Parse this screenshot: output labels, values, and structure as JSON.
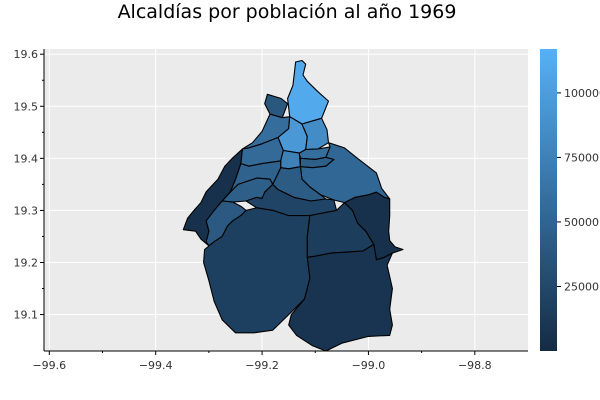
{
  "title": "Alcaldías por población al año 1969",
  "chart_data": {
    "type": "choropleth",
    "title": "Alcaldías por población al año 1969",
    "xlim": [
      -99.61,
      -98.7
    ],
    "ylim": [
      19.03,
      19.61
    ],
    "x_ticks": [
      "−99.6",
      "−99.4",
      "−99.2",
      "−99.0",
      "−98.8"
    ],
    "x_tick_values": [
      -99.6,
      -99.4,
      -99.2,
      -99.0,
      -98.8
    ],
    "y_ticks": [
      "19.1",
      "19.2",
      "19.3",
      "19.4",
      "19.5",
      "19.6"
    ],
    "y_tick_values": [
      19.1,
      19.2,
      19.3,
      19.4,
      19.5,
      19.6
    ],
    "grid": true,
    "colorbar": {
      "min": 0,
      "max": 117000,
      "ticks": [
        "25000",
        "50000",
        "75000",
        "100000"
      ],
      "tick_values": [
        25000,
        50000,
        75000,
        100000
      ],
      "color_low": "#142b44",
      "color_high": "#56b1f7"
    },
    "regions": [
      {
        "value": 110000,
        "coords": [
          [
            -99.137,
            19.585
          ],
          [
            -99.125,
            19.588
          ],
          [
            -99.118,
            19.581
          ],
          [
            -99.123,
            19.56
          ],
          [
            -99.115,
            19.548
          ],
          [
            -99.095,
            19.528
          ],
          [
            -99.075,
            19.51
          ],
          [
            -99.088,
            19.477
          ],
          [
            -99.125,
            19.466
          ],
          [
            -99.148,
            19.48
          ],
          [
            -99.152,
            19.515
          ],
          [
            -99.142,
            19.54
          ],
          [
            -99.139,
            19.566
          ]
        ]
      },
      {
        "value": 38000,
        "coords": [
          [
            -99.19,
            19.523
          ],
          [
            -99.164,
            19.515
          ],
          [
            -99.152,
            19.505
          ],
          [
            -99.162,
            19.478
          ],
          [
            -99.185,
            19.485
          ],
          [
            -99.195,
            19.505
          ]
        ]
      },
      {
        "value": 58000,
        "coords": [
          [
            -99.185,
            19.485
          ],
          [
            -99.162,
            19.478
          ],
          [
            -99.148,
            19.48
          ],
          [
            -99.15,
            19.457
          ],
          [
            -99.17,
            19.44
          ],
          [
            -99.2,
            19.428
          ],
          [
            -99.225,
            19.42
          ],
          [
            -99.237,
            19.418
          ],
          [
            -99.218,
            19.43
          ],
          [
            -99.2,
            19.452
          ]
        ]
      },
      {
        "value": 95000,
        "coords": [
          [
            -99.148,
            19.48
          ],
          [
            -99.125,
            19.466
          ],
          [
            -99.115,
            19.442
          ],
          [
            -99.118,
            19.417
          ],
          [
            -99.13,
            19.41
          ],
          [
            -99.16,
            19.415
          ],
          [
            -99.17,
            19.44
          ],
          [
            -99.15,
            19.457
          ]
        ]
      },
      {
        "value": 85000,
        "coords": [
          [
            -99.125,
            19.466
          ],
          [
            -99.088,
            19.477
          ],
          [
            -99.078,
            19.455
          ],
          [
            -99.075,
            19.43
          ],
          [
            -99.095,
            19.418
          ],
          [
            -99.118,
            19.417
          ],
          [
            -99.115,
            19.442
          ]
        ]
      },
      {
        "value": 55000,
        "coords": [
          [
            -99.237,
            19.418
          ],
          [
            -99.225,
            19.42
          ],
          [
            -99.2,
            19.428
          ],
          [
            -99.17,
            19.44
          ],
          [
            -99.16,
            19.415
          ],
          [
            -99.165,
            19.395
          ],
          [
            -99.2,
            19.39
          ],
          [
            -99.225,
            19.385
          ],
          [
            -99.24,
            19.39
          ]
        ]
      },
      {
        "value": 75000,
        "coords": [
          [
            -99.16,
            19.415
          ],
          [
            -99.13,
            19.41
          ],
          [
            -99.128,
            19.384
          ],
          [
            -99.15,
            19.38
          ],
          [
            -99.165,
            19.382
          ],
          [
            -99.165,
            19.395
          ]
        ]
      },
      {
        "value": 58000,
        "coords": [
          [
            -99.118,
            19.417
          ],
          [
            -99.095,
            19.418
          ],
          [
            -99.072,
            19.422
          ],
          [
            -99.08,
            19.402
          ],
          [
            -99.1,
            19.398
          ],
          [
            -99.128,
            19.4
          ],
          [
            -99.13,
            19.41
          ]
        ]
      },
      {
        "value": 45000,
        "coords": [
          [
            -99.128,
            19.4
          ],
          [
            -99.1,
            19.398
          ],
          [
            -99.08,
            19.402
          ],
          [
            -99.065,
            19.398
          ],
          [
            -99.08,
            19.385
          ],
          [
            -99.105,
            19.382
          ],
          [
            -99.128,
            19.384
          ]
        ]
      },
      {
        "value": 52000,
        "coords": [
          [
            -99.075,
            19.43
          ],
          [
            -99.072,
            19.422
          ],
          [
            -99.08,
            19.402
          ],
          [
            -99.065,
            19.398
          ],
          [
            -99.08,
            19.385
          ],
          [
            -99.105,
            19.382
          ],
          [
            -99.128,
            19.384
          ],
          [
            -99.125,
            19.36
          ],
          [
            -99.11,
            19.345
          ],
          [
            -99.09,
            19.33
          ],
          [
            -99.065,
            19.32
          ],
          [
            -99.045,
            19.315
          ],
          [
            -99.025,
            19.325
          ],
          [
            -99.0,
            19.33
          ],
          [
            -98.985,
            19.335
          ],
          [
            -98.97,
            19.325
          ],
          [
            -98.96,
            19.322
          ],
          [
            -98.975,
            19.342
          ],
          [
            -98.985,
            19.372
          ],
          [
            -99.018,
            19.398
          ],
          [
            -99.045,
            19.42
          ]
        ]
      },
      {
        "value": 42000,
        "coords": [
          [
            -99.165,
            19.382
          ],
          [
            -99.15,
            19.38
          ],
          [
            -99.128,
            19.384
          ],
          [
            -99.125,
            19.36
          ],
          [
            -99.11,
            19.345
          ],
          [
            -99.09,
            19.33
          ],
          [
            -99.08,
            19.322
          ],
          [
            -99.108,
            19.318
          ],
          [
            -99.14,
            19.325
          ],
          [
            -99.17,
            19.34
          ],
          [
            -99.18,
            19.35
          ]
        ]
      },
      {
        "value": 48000,
        "coords": [
          [
            -99.24,
            19.39
          ],
          [
            -99.225,
            19.385
          ],
          [
            -99.2,
            19.39
          ],
          [
            -99.165,
            19.395
          ],
          [
            -99.165,
            19.382
          ],
          [
            -99.18,
            19.35
          ],
          [
            -99.185,
            19.36
          ],
          [
            -99.21,
            19.362
          ],
          [
            -99.245,
            19.35
          ],
          [
            -99.255,
            19.34
          ],
          [
            -99.26,
            19.335
          ],
          [
            -99.25,
            19.36
          ]
        ]
      },
      {
        "value": 5000,
        "coords": [
          [
            -99.237,
            19.418
          ],
          [
            -99.24,
            19.39
          ],
          [
            -99.25,
            19.36
          ],
          [
            -99.26,
            19.335
          ],
          [
            -99.275,
            19.318
          ],
          [
            -99.29,
            19.3
          ],
          [
            -99.305,
            19.28
          ],
          [
            -99.3,
            19.26
          ],
          [
            -99.305,
            19.24
          ],
          [
            -99.3,
            19.232
          ],
          [
            -99.315,
            19.245
          ],
          [
            -99.325,
            19.26
          ],
          [
            -99.348,
            19.263
          ],
          [
            -99.34,
            19.285
          ],
          [
            -99.328,
            19.3
          ],
          [
            -99.315,
            19.315
          ],
          [
            -99.305,
            19.336
          ],
          [
            -99.283,
            19.36
          ],
          [
            -99.27,
            19.385
          ],
          [
            -99.256,
            19.4
          ]
        ]
      },
      {
        "value": 45000,
        "coords": [
          [
            -99.26,
            19.335
          ],
          [
            -99.255,
            19.34
          ],
          [
            -99.245,
            19.35
          ],
          [
            -99.21,
            19.362
          ],
          [
            -99.185,
            19.36
          ],
          [
            -99.18,
            19.35
          ],
          [
            -99.195,
            19.335
          ],
          [
            -99.2,
            19.323
          ],
          [
            -99.21,
            19.325
          ],
          [
            -99.23,
            19.318
          ],
          [
            -99.255,
            19.316
          ],
          [
            -99.275,
            19.318
          ]
        ]
      },
      {
        "value": 40000,
        "coords": [
          [
            -99.29,
            19.3
          ],
          [
            -99.275,
            19.318
          ],
          [
            -99.255,
            19.316
          ],
          [
            -99.24,
            19.308
          ],
          [
            -99.23,
            19.3
          ],
          [
            -99.24,
            19.29
          ],
          [
            -99.255,
            19.28
          ],
          [
            -99.265,
            19.27
          ],
          [
            -99.275,
            19.25
          ],
          [
            -99.29,
            19.24
          ],
          [
            -99.3,
            19.232
          ],
          [
            -99.305,
            19.24
          ],
          [
            -99.3,
            19.26
          ],
          [
            -99.305,
            19.28
          ]
        ]
      },
      {
        "value": 22000,
        "coords": [
          [
            -99.23,
            19.318
          ],
          [
            -99.21,
            19.325
          ],
          [
            -99.2,
            19.323
          ],
          [
            -99.195,
            19.335
          ],
          [
            -99.18,
            19.35
          ],
          [
            -99.17,
            19.34
          ],
          [
            -99.14,
            19.325
          ],
          [
            -99.108,
            19.318
          ],
          [
            -99.08,
            19.322
          ],
          [
            -99.065,
            19.32
          ],
          [
            -99.06,
            19.3
          ],
          [
            -99.085,
            19.295
          ],
          [
            -99.11,
            19.29
          ],
          [
            -99.15,
            19.29
          ],
          [
            -99.18,
            19.3
          ],
          [
            -99.21,
            19.305
          ]
        ]
      },
      {
        "value": 18000,
        "coords": [
          [
            -99.29,
            19.24
          ],
          [
            -99.275,
            19.25
          ],
          [
            -99.265,
            19.27
          ],
          [
            -99.255,
            19.28
          ],
          [
            -99.24,
            19.29
          ],
          [
            -99.23,
            19.3
          ],
          [
            -99.21,
            19.305
          ],
          [
            -99.18,
            19.3
          ],
          [
            -99.15,
            19.29
          ],
          [
            -99.11,
            19.29
          ],
          [
            -99.115,
            19.25
          ],
          [
            -99.115,
            19.21
          ],
          [
            -99.11,
            19.17
          ],
          [
            -99.12,
            19.13
          ],
          [
            -99.15,
            19.1
          ],
          [
            -99.18,
            19.07
          ],
          [
            -99.215,
            19.065
          ],
          [
            -99.25,
            19.065
          ],
          [
            -99.275,
            19.09
          ],
          [
            -99.29,
            19.125
          ],
          [
            -99.3,
            19.165
          ],
          [
            -99.31,
            19.2
          ],
          [
            -99.308,
            19.225
          ]
        ]
      },
      {
        "value": 16000,
        "coords": [
          [
            -99.11,
            19.29
          ],
          [
            -99.085,
            19.295
          ],
          [
            -99.06,
            19.3
          ],
          [
            -99.045,
            19.315
          ],
          [
            -99.03,
            19.3
          ],
          [
            -99.02,
            19.275
          ],
          [
            -99.005,
            19.26
          ],
          [
            -98.99,
            19.235
          ],
          [
            -99.01,
            19.222
          ],
          [
            -99.04,
            19.22
          ],
          [
            -99.07,
            19.218
          ],
          [
            -99.1,
            19.212
          ],
          [
            -99.115,
            19.21
          ],
          [
            -99.115,
            19.25
          ]
        ]
      },
      {
        "value": 5000,
        "coords": [
          [
            -99.045,
            19.315
          ],
          [
            -99.025,
            19.325
          ],
          [
            -99.0,
            19.33
          ],
          [
            -98.985,
            19.335
          ],
          [
            -98.97,
            19.325
          ],
          [
            -98.96,
            19.322
          ],
          [
            -98.96,
            19.29
          ],
          [
            -98.962,
            19.26
          ],
          [
            -98.96,
            19.242
          ],
          [
            -98.95,
            19.23
          ],
          [
            -98.935,
            19.225
          ],
          [
            -98.955,
            19.218
          ],
          [
            -98.97,
            19.21
          ],
          [
            -98.985,
            19.205
          ],
          [
            -98.99,
            19.235
          ],
          [
            -99.005,
            19.26
          ],
          [
            -99.02,
            19.275
          ],
          [
            -99.03,
            19.3
          ]
        ]
      },
      {
        "value": 8000,
        "coords": [
          [
            -99.115,
            19.21
          ],
          [
            -99.1,
            19.212
          ],
          [
            -99.07,
            19.218
          ],
          [
            -99.04,
            19.22
          ],
          [
            -99.01,
            19.222
          ],
          [
            -98.99,
            19.235
          ],
          [
            -98.985,
            19.205
          ],
          [
            -98.97,
            19.21
          ],
          [
            -98.955,
            19.218
          ],
          [
            -98.965,
            19.195
          ],
          [
            -98.955,
            19.15
          ],
          [
            -98.96,
            19.11
          ],
          [
            -98.955,
            19.08
          ],
          [
            -98.96,
            19.06
          ],
          [
            -99.0,
            19.058
          ],
          [
            -99.05,
            19.045
          ],
          [
            -99.08,
            19.03
          ],
          [
            -99.105,
            19.04
          ],
          [
            -99.135,
            19.06
          ],
          [
            -99.15,
            19.08
          ],
          [
            -99.145,
            19.1
          ],
          [
            -99.12,
            19.13
          ],
          [
            -99.11,
            19.17
          ]
        ]
      }
    ]
  }
}
